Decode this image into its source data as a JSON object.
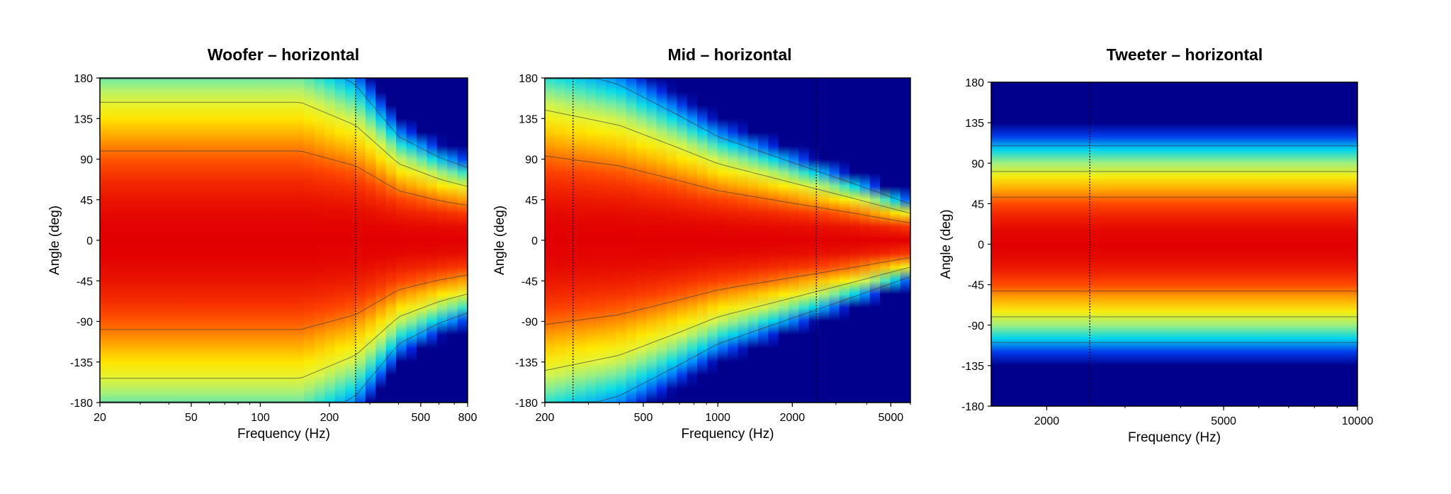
{
  "chart_data": [
    {
      "type": "heatmap",
      "title": "Woofer – horizontal",
      "xlabel": "Frequency (Hz)",
      "ylabel": "Angle (deg)",
      "x_scale": "log",
      "xlim": [
        20,
        800
      ],
      "ylim": [
        -180,
        180
      ],
      "x_ticks": [
        20,
        50,
        100,
        200,
        500,
        800
      ],
      "y_ticks": [
        180,
        135,
        90,
        45,
        0,
        -45,
        -90,
        -135,
        -180
      ],
      "marker_line_x": 260,
      "beamwidth": [
        {
          "x": 20,
          "angle": 180
        },
        {
          "x": 150,
          "angle": 180
        },
        {
          "x": 260,
          "angle": 150
        },
        {
          "x": 400,
          "angle": 100
        },
        {
          "x": 600,
          "angle": 80
        },
        {
          "x": 800,
          "angle": 70
        }
      ]
    },
    {
      "type": "heatmap",
      "title": "Mid – horizontal",
      "xlabel": "Frequency (Hz)",
      "ylabel": "Angle (deg)",
      "x_scale": "log",
      "xlim": [
        200,
        6000
      ],
      "ylim": [
        -180,
        180
      ],
      "x_ticks": [
        200,
        500,
        1000,
        2000,
        5000
      ],
      "y_ticks": [
        180,
        135,
        90,
        45,
        0,
        -45,
        -90,
        -135,
        -180
      ],
      "marker_line_x": [
        260,
        2500
      ],
      "beamwidth": [
        {
          "x": 200,
          "angle": 170
        },
        {
          "x": 400,
          "angle": 150
        },
        {
          "x": 700,
          "angle": 120
        },
        {
          "x": 1000,
          "angle": 100
        },
        {
          "x": 2000,
          "angle": 75
        },
        {
          "x": 3500,
          "angle": 55
        },
        {
          "x": 6000,
          "angle": 35
        }
      ]
    },
    {
      "type": "heatmap",
      "title": "Tweeter – horizontal",
      "xlabel": "Frequency (Hz)",
      "ylabel": "Angle (deg)",
      "x_scale": "log",
      "xlim": [
        1500,
        10000
      ],
      "ylim": [
        -180,
        180
      ],
      "x_ticks": [
        2000,
        5000,
        10000
      ],
      "y_ticks": [
        180,
        135,
        90,
        45,
        0,
        -45,
        -90,
        -135,
        -180
      ],
      "marker_line_x": 2500,
      "beamwidth": [
        {
          "x": 1500,
          "angle": 95
        },
        {
          "x": 10000,
          "angle": 95
        }
      ]
    }
  ]
}
